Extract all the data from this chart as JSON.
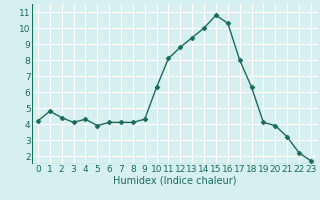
{
  "x": [
    0,
    1,
    2,
    3,
    4,
    5,
    6,
    7,
    8,
    9,
    10,
    11,
    12,
    13,
    14,
    15,
    16,
    17,
    18,
    19,
    20,
    21,
    22,
    23
  ],
  "y": [
    4.2,
    4.8,
    4.4,
    4.1,
    4.3,
    3.9,
    4.1,
    4.1,
    4.1,
    4.3,
    6.3,
    8.1,
    8.8,
    9.4,
    10.0,
    10.8,
    10.3,
    8.0,
    6.3,
    4.1,
    3.9,
    3.2,
    2.2,
    1.7
  ],
  "xlabel": "Humidex (Indice chaleur)",
  "xlim": [
    -0.5,
    23.5
  ],
  "ylim": [
    1.5,
    11.5
  ],
  "yticks": [
    2,
    3,
    4,
    5,
    6,
    7,
    8,
    9,
    10,
    11
  ],
  "xticks": [
    0,
    1,
    2,
    3,
    4,
    5,
    6,
    7,
    8,
    9,
    10,
    11,
    12,
    13,
    14,
    15,
    16,
    17,
    18,
    19,
    20,
    21,
    22,
    23
  ],
  "line_color": "#1a6b5a",
  "marker": "D",
  "marker_size": 2.5,
  "bg_color": "#d6f0f0",
  "grid_color": "#b0d8d8",
  "axis_label_color": "#1a6b5a",
  "tick_label_color": "#1a6b5a",
  "xlabel_fontsize": 7,
  "tick_fontsize": 6.5,
  "linewidth": 1.0
}
